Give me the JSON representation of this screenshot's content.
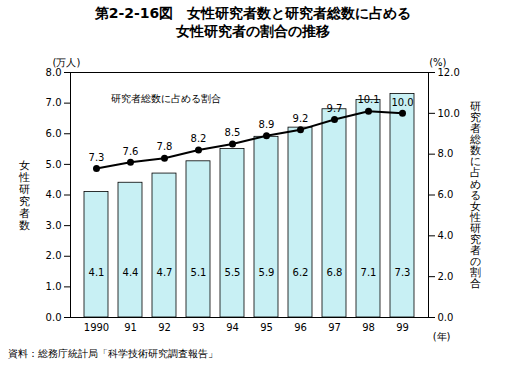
{
  "chart_data": {
    "type": "bar",
    "title": "第2-2-16図　女性研究者数と研究者総数に占める\n女性研究者の割合の推移",
    "categories": [
      "1990",
      "91",
      "92",
      "93",
      "94",
      "95",
      "96",
      "97",
      "98",
      "99"
    ],
    "series": [
      {
        "name": "女性研究者数",
        "type": "bar",
        "color": "#c8f0f4",
        "values": [
          4.1,
          4.4,
          4.7,
          5.1,
          5.5,
          5.9,
          6.2,
          6.8,
          7.1,
          7.3
        ]
      },
      {
        "name": "研究者総数に占める割合",
        "type": "line",
        "axis": "y2",
        "color": "#000000",
        "marker": "circle",
        "values": [
          7.3,
          7.6,
          7.8,
          8.2,
          8.5,
          8.9,
          9.2,
          9.7,
          10.1,
          10.0
        ],
        "value_labels": [
          "7.3",
          "7.6",
          "7.8",
          "8.2",
          "8.5",
          "8.9",
          "9.2",
          "9.7",
          "10.1",
          "10.0"
        ]
      }
    ],
    "y_unit": "(万人)",
    "y2_label": "研究者総数に占める女性研究者の割合",
    "y2_unit": "(%)",
    "x_unit": "(年)",
    "ylim": [
      0,
      8
    ],
    "yticks": [
      {
        "value": 0,
        "label": "0.0"
      },
      {
        "value": 1,
        "label": "1.0"
      },
      {
        "value": 2,
        "label": "2.0"
      },
      {
        "value": 3,
        "label": "3.0"
      },
      {
        "value": 4,
        "label": "4.0"
      },
      {
        "value": 5,
        "label": "5.0"
      },
      {
        "value": 6,
        "label": "6.0"
      },
      {
        "value": 7,
        "label": "7.0"
      },
      {
        "value": 8,
        "label": "8.0"
      }
    ],
    "y2lim": [
      0,
      12
    ],
    "y2ticks": [
      {
        "value": 0,
        "label": "0.0"
      },
      {
        "value": 2,
        "label": "2.0"
      },
      {
        "value": 4,
        "label": "4.0"
      },
      {
        "value": 6,
        "label": "6.0"
      },
      {
        "value": 8,
        "label": "8.0"
      },
      {
        "value": 10,
        "label": "10.0"
      },
      {
        "value": 12,
        "label": "12.0"
      }
    ],
    "grid": false,
    "data_labels": true,
    "source": "資料：総務庁統計局「科学技術研究調査報告」"
  }
}
